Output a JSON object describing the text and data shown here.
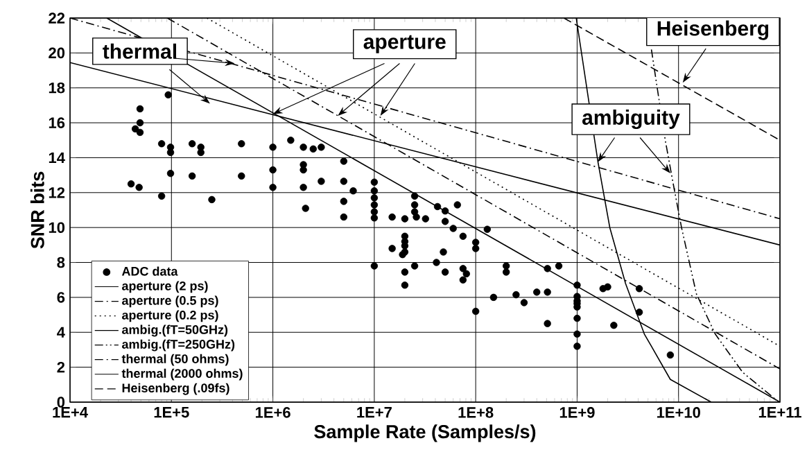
{
  "chart_data": {
    "type": "line",
    "xlabel": "Sample Rate (Samples/s)",
    "ylabel": "SNR bits",
    "log": "x",
    "grid": true,
    "legend": "bottom left",
    "xlim": [
      10000,
      100000000000
    ],
    "ylim": [
      0,
      22
    ],
    "xticks": [
      {
        "value": 10000,
        "label": "1E+4"
      },
      {
        "value": 100000,
        "label": "1E+5"
      },
      {
        "value": 1000000,
        "label": "1E+6"
      },
      {
        "value": 10000000,
        "label": "1E+7"
      },
      {
        "value": 100000000,
        "label": "1E+8"
      },
      {
        "value": 1000000000,
        "label": "1E+9"
      },
      {
        "value": 10000000000,
        "label": "1E+10"
      },
      {
        "value": 100000000000,
        "label": "1E+11"
      }
    ],
    "yticks": [
      0,
      2,
      4,
      6,
      8,
      10,
      12,
      14,
      16,
      18,
      20,
      22
    ],
    "annotations": [
      {
        "text": "thermal",
        "x": 420000,
        "y": 19.4
      },
      {
        "text": "aperture",
        "x": 1000000,
        "y": 16.5
      },
      {
        "text": "ambiguity",
        "x": 1600000000,
        "y": 13.75
      },
      {
        "text": "Heisenberg",
        "x": 11000000000,
        "y": 18.3
      }
    ],
    "series": [
      {
        "name": "ADC data",
        "type": "scatter",
        "color": "#000000",
        "marker": "circle",
        "x": [
          93000,
          49000,
          49000,
          44000,
          49000,
          80000,
          98000,
          98000,
          160000,
          195000,
          195000,
          490000,
          1000000,
          1500000,
          2000000,
          2500000,
          3000000,
          98000,
          160000,
          490000,
          1000000,
          1000000,
          40000,
          48000,
          80000,
          250000,
          2000000,
          2000000,
          2000000,
          2100000,
          3000000,
          5000000,
          5000000,
          5000000,
          5000000,
          6200000,
          10000000,
          10000000,
          10000000,
          10000000,
          10000000,
          10000000,
          15000000,
          20000000,
          25000000,
          25000000,
          25000000,
          26000000,
          32000000,
          42000000,
          50000000,
          66000000,
          50000000,
          10000000,
          60000000,
          75000000,
          15000000,
          19000000,
          20000000,
          20000000,
          20000000,
          20000000,
          25000000,
          20000000,
          20000000,
          41000000,
          48000000,
          50000000,
          75000000,
          81000000,
          75000000,
          100000000,
          100000000,
          100000000,
          130000000,
          200000000,
          200000000,
          150000000,
          250000000,
          300000000,
          400000000,
          510000000,
          510000000,
          510000000,
          660000000,
          1000000000,
          1000000000,
          1000000000,
          1000000000,
          1000000000,
          1000000000,
          1000000000,
          1000000000,
          1800000000,
          2000000000,
          4100000000,
          4100000000,
          2300000000,
          8300000000
        ],
        "values": [
          17.6,
          16.8,
          16.0,
          15.65,
          15.45,
          14.8,
          14.6,
          14.3,
          14.8,
          14.6,
          14.3,
          14.8,
          14.6,
          15.0,
          14.6,
          14.5,
          14.6,
          13.1,
          12.95,
          12.95,
          13.3,
          12.3,
          12.5,
          12.3,
          11.8,
          11.6,
          13.6,
          13.3,
          12.3,
          11.1,
          12.65,
          11.5,
          10.6,
          13.8,
          12.65,
          12.1,
          12.6,
          12.1,
          11.7,
          11.3,
          10.9,
          10.55,
          10.6,
          10.5,
          11.8,
          11.3,
          10.9,
          10.6,
          10.5,
          11.2,
          10.95,
          11.3,
          10.35,
          7.8,
          9.95,
          9.5,
          8.8,
          8.45,
          9.5,
          9.2,
          8.95,
          8.6,
          7.8,
          7.45,
          6.7,
          8.0,
          8.6,
          7.45,
          7.65,
          7.35,
          7.0,
          9.15,
          8.8,
          5.2,
          9.9,
          7.8,
          7.45,
          6.0,
          6.15,
          5.7,
          6.3,
          6.3,
          4.5,
          7.65,
          7.8,
          6.7,
          6.05,
          5.8,
          5.65,
          5.45,
          4.8,
          3.9,
          3.2,
          6.5,
          6.6,
          6.5,
          5.15,
          4.4,
          2.7
        ]
      },
      {
        "name": "aperture (2 ps)",
        "color": "#000000",
        "line_style": "solid",
        "x": [
          23000,
          100000000000
        ],
        "values": [
          22,
          0
        ]
      },
      {
        "name": "aperture (0.5 ps)",
        "color": "#000000",
        "line_style": "dashdot",
        "x": [
          91000,
          100000000000
        ],
        "values": [
          22,
          1.9
        ]
      },
      {
        "name": "aperture (0.2 ps)",
        "color": "#000000",
        "line_style": "dotted",
        "x": [
          224000,
          100000000000
        ],
        "values": [
          22,
          3.2
        ]
      },
      {
        "name": "ambig.(fT=50GHz)",
        "color": "#000000",
        "line_style": "solid",
        "x": [
          980000000,
          1600000000,
          2100000000,
          3000000000,
          4600000000,
          5400000000,
          8300000000,
          21000000000
        ],
        "values": [
          22,
          13.8,
          10.0,
          6.8,
          3.9,
          3.2,
          1.3,
          0
        ]
      },
      {
        "name": "ambig.(fT=250GHz)",
        "color": "#000000",
        "line_style": "dashdotdot",
        "x": [
          5400000000,
          6200000000,
          7400000000,
          8800000000,
          10700000000,
          15000000000,
          23000000000,
          43000000000,
          93000000000
        ],
        "values": [
          20.2,
          17.9,
          15.0,
          12.6,
          10.0,
          6.2,
          3.9,
          1.7,
          0.1
        ]
      },
      {
        "name": "thermal (50 ohms)",
        "color": "#000000",
        "line_style": "dashdot",
        "x": [
          10000,
          100000000000
        ],
        "values": [
          22,
          10.5
        ]
      },
      {
        "name": "thermal (2000 ohms)",
        "color": "#000000",
        "line_style": "solid",
        "x": [
          10000,
          100000000000
        ],
        "values": [
          19.45,
          9.0
        ]
      },
      {
        "name": "Heisenberg (.09fs)",
        "color": "#000000",
        "line_style": "dashed",
        "x": [
          740000000,
          100000000000
        ],
        "values": [
          22,
          15.0
        ]
      }
    ]
  }
}
